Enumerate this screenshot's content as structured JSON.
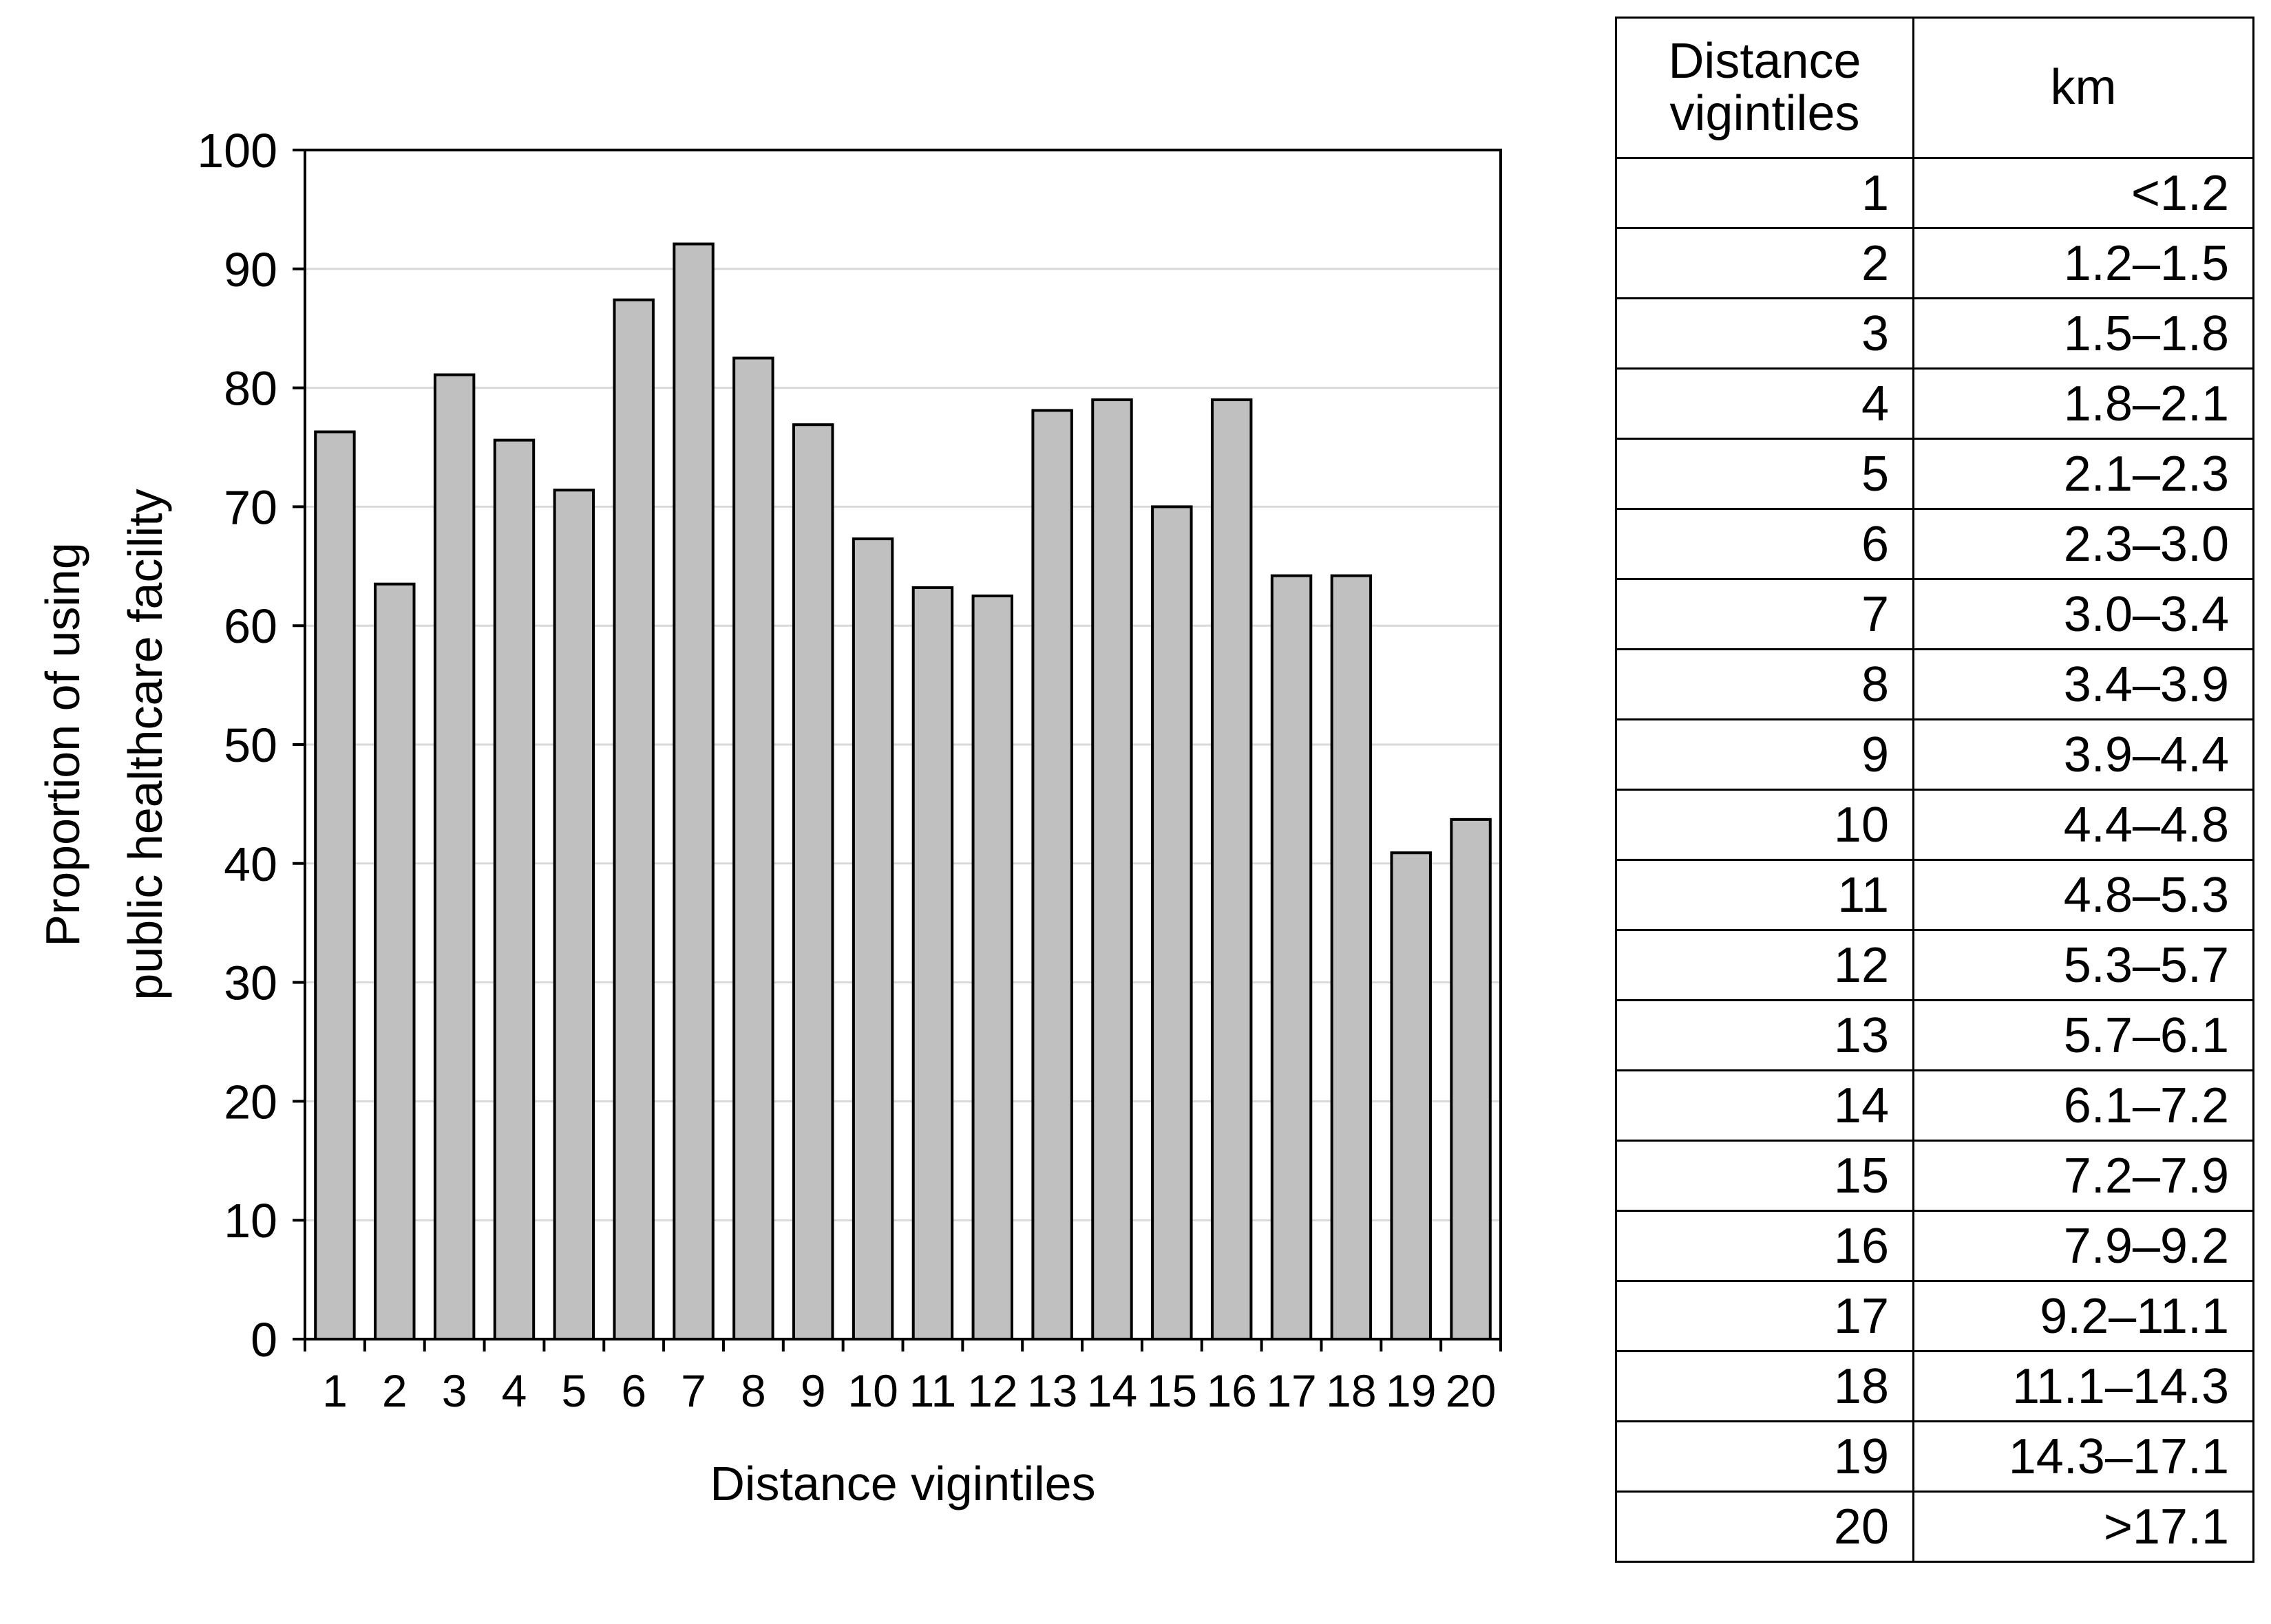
{
  "chart_data": {
    "type": "bar",
    "xlabel": "Distance vigintiles",
    "ylabel": "Proportion of using\npublic healthcare facility",
    "ylim": [
      0,
      100
    ],
    "yticks": [
      0,
      10,
      20,
      30,
      40,
      50,
      60,
      70,
      80,
      90,
      100
    ],
    "grid": "horizontal",
    "bar_color": "#c0c0c0",
    "categories": [
      "1",
      "2",
      "3",
      "4",
      "5",
      "6",
      "7",
      "8",
      "9",
      "10",
      "11",
      "12",
      "13",
      "14",
      "15",
      "16",
      "17",
      "18",
      "19",
      "20"
    ],
    "values": [
      76.3,
      63.5,
      81.1,
      75.6,
      71.4,
      87.4,
      92.1,
      82.5,
      76.9,
      67.3,
      63.2,
      62.5,
      78.1,
      79.0,
      70.0,
      79.0,
      64.2,
      64.2,
      40.9,
      43.7
    ]
  },
  "table": {
    "headers": [
      "Distance\nvigintiles",
      "km"
    ],
    "rows": [
      [
        "1",
        "<1.2"
      ],
      [
        "2",
        "1.2–1.5"
      ],
      [
        "3",
        "1.5–1.8"
      ],
      [
        "4",
        "1.8–2.1"
      ],
      [
        "5",
        "2.1–2.3"
      ],
      [
        "6",
        "2.3–3.0"
      ],
      [
        "7",
        "3.0–3.4"
      ],
      [
        "8",
        "3.4–3.9"
      ],
      [
        "9",
        "3.9–4.4"
      ],
      [
        "10",
        "4.4–4.8"
      ],
      [
        "11",
        "4.8–5.3"
      ],
      [
        "12",
        "5.3–5.7"
      ],
      [
        "13",
        "5.7–6.1"
      ],
      [
        "14",
        "6.1–7.2"
      ],
      [
        "15",
        "7.2–7.9"
      ],
      [
        "16",
        "7.9–9.2"
      ],
      [
        "17",
        "9.2–11.1"
      ],
      [
        "18",
        "11.1–14.3"
      ],
      [
        "19",
        "14.3–17.1"
      ],
      [
        "20",
        ">17.1"
      ]
    ]
  }
}
